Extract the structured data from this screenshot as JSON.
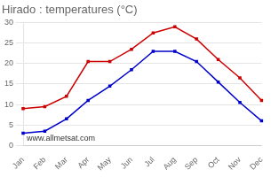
{
  "chart_data": {
    "type": "line",
    "title": "Hirado : temperatures (°C)",
    "categories": [
      "Jan",
      "Feb",
      "Mar",
      "Apr",
      "May",
      "Jun",
      "Jul",
      "Aug",
      "Sep",
      "Oct",
      "Nov",
      "Dec"
    ],
    "series": [
      {
        "color": "#cc0000",
        "values": [
          9,
          9.5,
          12,
          20.5,
          20.5,
          23.5,
          27.5,
          29,
          26,
          21,
          16.5,
          11
        ]
      },
      {
        "color": "#0000cc",
        "values": [
          3,
          3.5,
          6.5,
          11,
          14.5,
          18.5,
          23,
          23,
          20.5,
          15.5,
          10.5,
          6
        ]
      }
    ],
    "ylim": [
      0,
      30
    ],
    "yticks": [
      0,
      5,
      10,
      15,
      20,
      25,
      30
    ],
    "grid": true,
    "marker": "square",
    "annotations": [
      "www.allmetsat.com"
    ]
  }
}
